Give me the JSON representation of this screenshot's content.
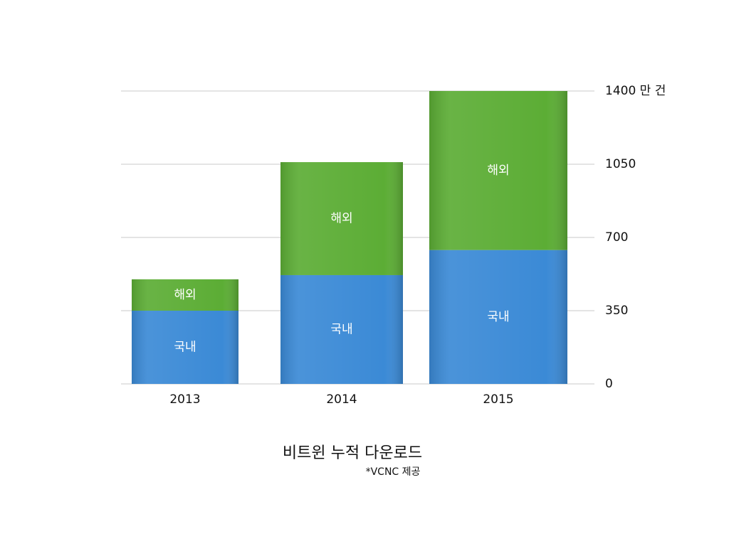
{
  "chart_data": {
    "type": "stacked-bar",
    "title": "비트윈 누적 다운로드",
    "subtitle": "*VCNC 제공",
    "categories": [
      "2013",
      "2014",
      "2015"
    ],
    "series": [
      {
        "name": "국내",
        "color": "#3b8ad6",
        "values": [
          350,
          520,
          640
        ]
      },
      {
        "name": "해외",
        "color": "#5cad35",
        "values": [
          150,
          540,
          760
        ]
      }
    ],
    "ylim": [
      0,
      1400
    ],
    "yticks": [
      0,
      350,
      700,
      1050,
      {
        "value": 1400,
        "label": "1400 만 건"
      }
    ],
    "grid": true
  }
}
